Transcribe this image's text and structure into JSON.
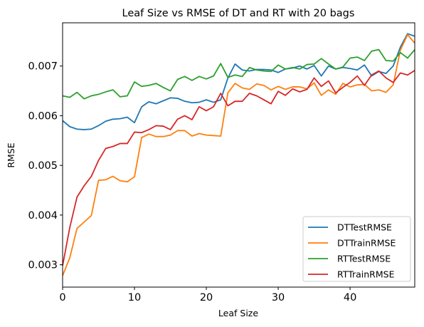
{
  "chart_data": {
    "type": "line",
    "title": "Leaf Size vs RMSE of DT and RT with 20 bags",
    "xlabel": "Leaf Size",
    "ylabel": "RMSE",
    "xlim": [
      0,
      49
    ],
    "ylim": [
      0.00255,
      0.00787
    ],
    "xticks": [
      0,
      10,
      20,
      30,
      40
    ],
    "yticks": [
      0.003,
      0.004,
      0.005,
      0.006,
      0.007
    ],
    "ytick_labels": [
      "0.003",
      "0.004",
      "0.005",
      "0.006",
      "0.007"
    ],
    "grid": false,
    "legend_position": "lower-right",
    "x": [
      0,
      1,
      2,
      3,
      4,
      5,
      6,
      7,
      8,
      9,
      10,
      11,
      12,
      13,
      14,
      15,
      16,
      17,
      18,
      19,
      20,
      21,
      22,
      23,
      24,
      25,
      26,
      27,
      28,
      29,
      30,
      31,
      32,
      33,
      34,
      35,
      36,
      37,
      38,
      39,
      40,
      41,
      42,
      43,
      44,
      45,
      46,
      47,
      48,
      49
    ],
    "series": [
      {
        "name": "DTTestRMSE",
        "color": "#1f77b4",
        "values": [
          0.0059,
          0.00578,
          0.00573,
          0.00572,
          0.00573,
          0.0058,
          0.00589,
          0.00593,
          0.00594,
          0.00597,
          0.00586,
          0.00618,
          0.00628,
          0.00624,
          0.0063,
          0.00636,
          0.00635,
          0.00629,
          0.00626,
          0.00627,
          0.00632,
          0.00627,
          0.00632,
          0.00676,
          0.00704,
          0.00692,
          0.0069,
          0.00693,
          0.00693,
          0.00692,
          0.00687,
          0.00694,
          0.00696,
          0.007,
          0.00694,
          0.00701,
          0.0068,
          0.007,
          0.00694,
          0.00697,
          0.00695,
          0.00692,
          0.00702,
          0.0068,
          0.00689,
          0.00685,
          0.007,
          0.00738,
          0.00765,
          0.0076
        ]
      },
      {
        "name": "DTTrainRMSE",
        "color": "#ff7f0e",
        "values": [
          0.00278,
          0.00314,
          0.00373,
          0.00386,
          0.00399,
          0.0047,
          0.00471,
          0.00478,
          0.00469,
          0.00467,
          0.00477,
          0.00556,
          0.00563,
          0.00558,
          0.00558,
          0.00561,
          0.0057,
          0.0057,
          0.00559,
          0.00564,
          0.00561,
          0.0056,
          0.00559,
          0.00646,
          0.00665,
          0.00656,
          0.00653,
          0.00664,
          0.00661,
          0.00652,
          0.00659,
          0.00653,
          0.00658,
          0.00658,
          0.00654,
          0.00666,
          0.00641,
          0.00652,
          0.00643,
          0.00665,
          0.00658,
          0.00662,
          0.00663,
          0.0065,
          0.00652,
          0.00647,
          0.00662,
          0.00732,
          0.00763,
          0.00746
        ]
      },
      {
        "name": "RTTestRMSE",
        "color": "#2ca02c",
        "values": [
          0.0064,
          0.00637,
          0.00647,
          0.00634,
          0.0064,
          0.00643,
          0.00648,
          0.00652,
          0.00638,
          0.0064,
          0.00668,
          0.00659,
          0.00661,
          0.00665,
          0.00657,
          0.0065,
          0.00673,
          0.00679,
          0.00671,
          0.00679,
          0.00674,
          0.0068,
          0.00705,
          0.00677,
          0.00682,
          0.00679,
          0.00697,
          0.00692,
          0.0069,
          0.00689,
          0.00702,
          0.00694,
          0.00697,
          0.00694,
          0.00703,
          0.00704,
          0.00715,
          0.00704,
          0.00694,
          0.00698,
          0.00716,
          0.00718,
          0.00711,
          0.0073,
          0.00733,
          0.00711,
          0.0071,
          0.00727,
          0.00716,
          0.00733
        ]
      },
      {
        "name": "RTTrainRMSE",
        "color": "#d62728",
        "values": [
          0.00298,
          0.00375,
          0.00436,
          0.00459,
          0.00478,
          0.0051,
          0.00534,
          0.00538,
          0.00544,
          0.00544,
          0.00567,
          0.00566,
          0.00572,
          0.0058,
          0.00579,
          0.00572,
          0.00593,
          0.006,
          0.00592,
          0.00618,
          0.0061,
          0.00618,
          0.00645,
          0.0062,
          0.00629,
          0.00629,
          0.00645,
          0.0064,
          0.00632,
          0.00624,
          0.00649,
          0.00641,
          0.00654,
          0.00648,
          0.00653,
          0.00676,
          0.00659,
          0.0067,
          0.00646,
          0.00657,
          0.00667,
          0.0068,
          0.00661,
          0.00682,
          0.0069,
          0.00676,
          0.00667,
          0.00686,
          0.00682,
          0.00691
        ]
      }
    ]
  }
}
